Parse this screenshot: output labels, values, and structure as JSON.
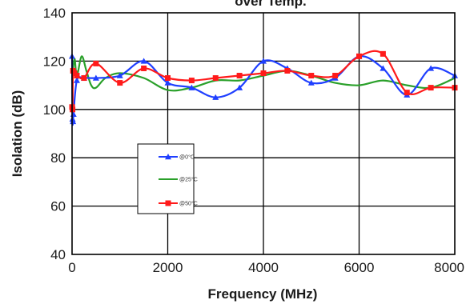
{
  "chart_data": {
    "type": "line",
    "title": "over Temp.",
    "xlabel": "Frequency (MHz)",
    "ylabel": "Isolation (dB)",
    "xlim": [
      0,
      8000
    ],
    "ylim": [
      40,
      140
    ],
    "x_ticks": [
      "0",
      "2000",
      "4000",
      "6000",
      "8000"
    ],
    "y_ticks": [
      "40",
      "60",
      "80",
      "100",
      "120",
      "140"
    ],
    "grid": true,
    "legend_position": "lower-left",
    "series": [
      {
        "name": "@0°C",
        "color": "#1f3fff",
        "marker": "triangle",
        "points": [
          [
            0,
            122
          ],
          [
            10,
            96
          ],
          [
            20,
            95
          ],
          [
            30,
            98
          ],
          [
            100,
            112
          ],
          [
            250,
            113
          ],
          [
            500,
            113
          ],
          [
            1000,
            114
          ],
          [
            1500,
            120
          ],
          [
            2000,
            111
          ],
          [
            2500,
            109
          ],
          [
            3000,
            105
          ],
          [
            3500,
            109
          ],
          [
            4000,
            120
          ],
          [
            4500,
            117
          ],
          [
            5000,
            111
          ],
          [
            5500,
            113
          ],
          [
            6000,
            122
          ],
          [
            6500,
            117
          ],
          [
            7000,
            106
          ],
          [
            7500,
            117
          ],
          [
            8000,
            114
          ]
        ]
      },
      {
        "name": "@25°C",
        "color": "#2aa02a",
        "marker": "none",
        "points": [
          [
            0,
            112
          ],
          [
            50,
            121
          ],
          [
            100,
            114
          ],
          [
            200,
            122
          ],
          [
            300,
            116
          ],
          [
            400,
            110
          ],
          [
            500,
            109
          ],
          [
            700,
            113
          ],
          [
            1000,
            115
          ],
          [
            1500,
            113
          ],
          [
            2000,
            108
          ],
          [
            2500,
            109
          ],
          [
            3000,
            112
          ],
          [
            3500,
            112
          ],
          [
            4000,
            114
          ],
          [
            4500,
            116
          ],
          [
            5000,
            114
          ],
          [
            5500,
            111
          ],
          [
            6000,
            110
          ],
          [
            6500,
            112
          ],
          [
            7000,
            110
          ],
          [
            7500,
            109
          ],
          [
            8000,
            113
          ]
        ]
      },
      {
        "name": "@50°C",
        "color": "#ff1a1a",
        "marker": "square",
        "points": [
          [
            0,
            101
          ],
          [
            10,
            100
          ],
          [
            20,
            116
          ],
          [
            50,
            115
          ],
          [
            100,
            114
          ],
          [
            250,
            113
          ],
          [
            500,
            119
          ],
          [
            1000,
            111
          ],
          [
            1500,
            117
          ],
          [
            2000,
            113
          ],
          [
            2500,
            112
          ],
          [
            3000,
            113
          ],
          [
            3500,
            114
          ],
          [
            4000,
            115
          ],
          [
            4500,
            116
          ],
          [
            5000,
            114
          ],
          [
            5500,
            114
          ],
          [
            6000,
            122
          ],
          [
            6500,
            123
          ],
          [
            7000,
            107
          ],
          [
            7500,
            109
          ],
          [
            8000,
            109
          ]
        ]
      }
    ]
  }
}
